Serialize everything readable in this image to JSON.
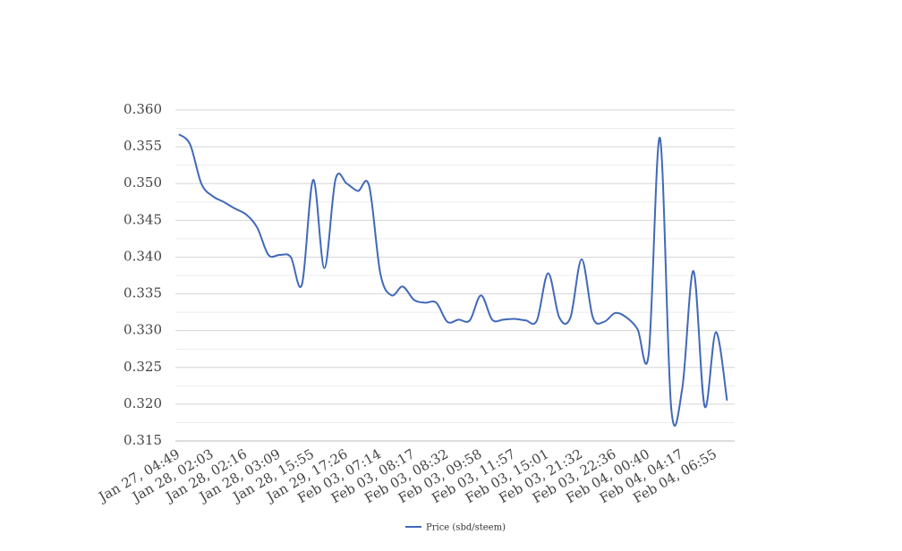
{
  "chart_data": {
    "type": "line",
    "categories": [
      "Jan 27, 04:49",
      null,
      null,
      "Jan 28, 02:03",
      null,
      null,
      "Jan 28, 02:16",
      null,
      null,
      "Jan 28, 03:09",
      null,
      null,
      "Jan 28, 15:55",
      null,
      null,
      "Jan 29, 17:26",
      null,
      null,
      "Feb 03, 07:14",
      null,
      null,
      "Feb 03, 08:17",
      null,
      null,
      "Feb 03, 08:32",
      null,
      null,
      "Feb 03, 09:58",
      null,
      null,
      "Feb 03, 11:57",
      null,
      null,
      "Feb 03, 15:01",
      null,
      null,
      "Feb 03, 21:32",
      null,
      null,
      "Feb 03, 22:36",
      null,
      null,
      "Feb 04, 00:40",
      null,
      null,
      "Feb 04, 04:17",
      null,
      null,
      "Feb 04, 06:55",
      null
    ],
    "series": [
      {
        "name": "Price (sbd/steem)",
        "color": "#4169b8",
        "values": [
          0.3567,
          0.3553,
          0.35,
          0.3483,
          0.3475,
          0.3466,
          0.3458,
          0.344,
          0.3403,
          0.3403,
          0.34,
          0.3363,
          0.3505,
          0.3385,
          0.3506,
          0.35,
          0.349,
          0.3497,
          0.3378,
          0.3348,
          0.336,
          0.3342,
          0.3338,
          0.3338,
          0.3312,
          0.3315,
          0.3314,
          0.3348,
          0.3315,
          0.3315,
          0.3316,
          0.3314,
          0.3314,
          0.3378,
          0.3318,
          0.3318,
          0.3397,
          0.3318,
          0.3312,
          0.3324,
          0.3318,
          0.3302,
          0.3269,
          0.3562,
          0.3196,
          0.3222,
          0.3381,
          0.3197,
          0.3298,
          0.3205
        ]
      }
    ],
    "ylim": [
      0.315,
      0.36
    ],
    "yticks": [
      0.315,
      {
        "value": 0.32,
        "label": "0.320"
      },
      0.325,
      {
        "value": 0.33,
        "label": "0.330"
      },
      0.335,
      {
        "value": 0.34,
        "label": "0.340"
      },
      0.345,
      {
        "value": 0.35,
        "label": "0.350"
      },
      0.355,
      {
        "value": 0.36,
        "label": "0.360"
      }
    ],
    "grid": true,
    "legend": "bottom"
  }
}
